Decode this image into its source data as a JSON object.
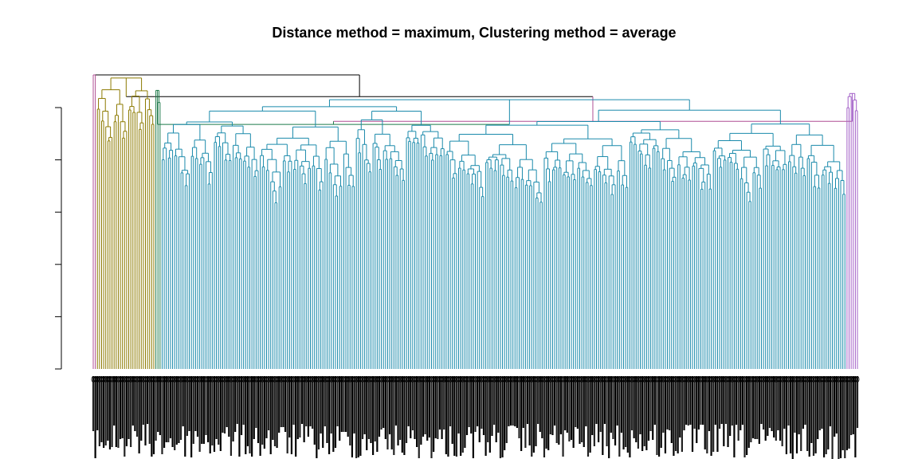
{
  "title": "Distance method = maximum, Clustering method = average",
  "chart_data": {
    "type": "dendrogram",
    "title": "Distance method = maximum, Clustering method = average",
    "xlabel": "",
    "ylabel": "",
    "y_axis": {
      "tick_labels_visible": false,
      "tick_count": 6
    },
    "leaf_count": 367,
    "leaf_labels_legible": false,
    "branch_colors": {
      "root": "#000000",
      "magenta_cluster": "#B04F94",
      "olive_cluster": "#8C7A00",
      "green_cluster": "#1D7A4A",
      "teal_cluster": "#1A8AAB",
      "violet_cluster": "#A25FC7"
    },
    "clusters": [
      {
        "name": "magenta",
        "color": "#B04F94",
        "leaves": 2,
        "merge_height": 0.95
      },
      {
        "name": "olive",
        "color": "#8C7A00",
        "leaves": 28,
        "merge_height": 0.94
      },
      {
        "name": "green",
        "color": "#1D7A4A",
        "leaves": 3,
        "merge_height": 0.9
      },
      {
        "name": "teal",
        "color": "#1A8AAB",
        "leaves": 328,
        "merge_height": 0.87
      },
      {
        "name": "violet",
        "color": "#A25FC7",
        "leaves": 6,
        "merge_height": 0.89
      }
    ],
    "top_merges": [
      0.95,
      0.88,
      0.87,
      0.8,
      0.79
    ],
    "grid": false,
    "legend": "none"
  }
}
